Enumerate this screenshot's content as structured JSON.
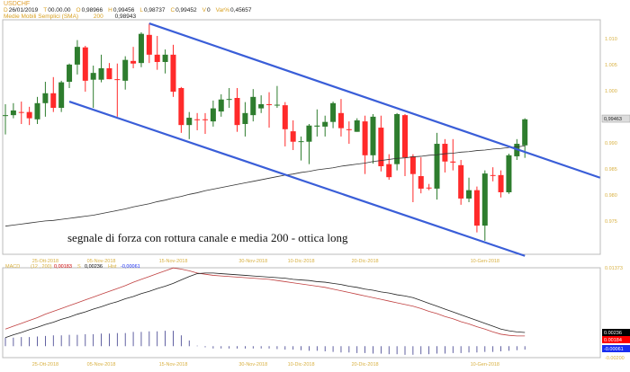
{
  "header": {
    "symbol": "USDCHF",
    "ohlc": [
      {
        "k": "D",
        "v": "26/01/2019"
      },
      {
        "k": "T",
        "v": "00.00.00"
      },
      {
        "k": "O",
        "v": "0,98966"
      },
      {
        "k": "H",
        "v": "0,99456"
      },
      {
        "k": "L",
        "v": "0,98737"
      },
      {
        "k": "C",
        "v": "0,99452"
      },
      {
        "k": "V",
        "v": "0"
      },
      {
        "k": "Var%",
        "v": "0,45657"
      }
    ],
    "sma_label": "Medie Mobili Semplici (SMA)",
    "sma_period": "200",
    "sma_value": "0,98943"
  },
  "annotation": "segnale di forza con rottura canale e media 200 - ottica long",
  "colors": {
    "up": "#2e7d2e",
    "down": "#ff2a2a",
    "channel": "#3a5ed8",
    "sma": "#333333",
    "macd": "#c04040",
    "signal": "#222222",
    "hist": "#3a3a8a",
    "axis_text": "#d8b040"
  },
  "chart_data": [
    {
      "type": "candlestick",
      "ylim": [
        0.9686,
        1.0136
      ],
      "yticks": [
        "1.010",
        "1.005",
        "1.000",
        "0.995",
        "0.990",
        "0.985",
        "0.980",
        "0.975"
      ],
      "ytick_values": [
        1.01,
        1.005,
        1.0,
        0.995,
        0.99,
        0.985,
        0.98,
        0.975
      ],
      "last_price_label": "0,99463",
      "xtick_labels": [
        {
          "i": 5,
          "t": "25-Ott-2018"
        },
        {
          "i": 12,
          "t": "05-Nov-2018"
        },
        {
          "i": 21,
          "t": "15-Nov-2018"
        },
        {
          "i": 31,
          "t": "30-Nov-2018"
        },
        {
          "i": 37,
          "t": "10-Dic-2018"
        },
        {
          "i": 45,
          "t": "20-Dic-2018"
        },
        {
          "i": 60,
          "t": "10-Gen-2018"
        }
      ],
      "candles_ohlc": [
        [
          0.9952,
          0.9974,
          0.9916,
          0.9953
        ],
        [
          0.9953,
          0.9976,
          0.9947,
          0.9962
        ],
        [
          0.9959,
          0.9979,
          0.9936,
          0.9958
        ],
        [
          0.9959,
          0.9969,
          0.9934,
          0.9947
        ],
        [
          0.9945,
          0.9988,
          0.9936,
          0.9976
        ],
        [
          0.9976,
          1.0017,
          0.995,
          0.9995
        ],
        [
          0.9995,
          1.0026,
          0.9959,
          0.9967
        ],
        [
          0.9967,
          1.0019,
          0.9959,
          1.0016
        ],
        [
          1.0017,
          1.0052,
          1.0005,
          1.005
        ],
        [
          1.005,
          1.0097,
          1.0031,
          1.0084
        ],
        [
          1.0083,
          1.0086,
          0.9998,
          1.0019
        ],
        [
          1.0021,
          1.0048,
          0.9967,
          1.0034
        ],
        [
          1.0021,
          1.0069,
          1.0016,
          1.0043
        ],
        [
          1.0043,
          1.0053,
          1.0022,
          1.0022
        ],
        [
          1.0022,
          1.0052,
          0.995,
          1.0021
        ],
        [
          1.0019,
          1.0066,
          1.0002,
          1.0059
        ],
        [
          1.0057,
          1.0084,
          1.0043,
          1.0052
        ],
        [
          1.0053,
          1.0112,
          1.0045,
          1.0109
        ],
        [
          1.0107,
          1.0129,
          1.0053,
          1.0069
        ],
        [
          1.0069,
          1.0105,
          1.004,
          1.0055
        ],
        [
          1.0055,
          1.0079,
          1.0033,
          1.0069
        ],
        [
          1.0069,
          1.0088,
          0.9988,
          0.9998
        ],
        [
          1.0005,
          1.0007,
          0.9919,
          0.9934
        ],
        [
          0.9934,
          0.9959,
          0.9907,
          0.9948
        ],
        [
          0.9945,
          0.9957,
          0.9924,
          0.9944
        ],
        [
          0.9945,
          0.9957,
          0.9917,
          0.9944
        ],
        [
          0.9941,
          0.9981,
          0.9931,
          0.9966
        ],
        [
          0.996,
          0.9993,
          0.995,
          0.9983
        ],
        [
          0.9983,
          1.0005,
          0.9967,
          0.9984
        ],
        [
          0.9986,
          1.0005,
          0.9921,
          0.9934
        ],
        [
          0.9936,
          0.9978,
          0.9912,
          0.9957
        ],
        [
          0.9953,
          1.0003,
          0.9941,
          0.9988
        ],
        [
          0.9966,
          0.9991,
          0.9957,
          0.9974
        ],
        [
          0.9974,
          0.9997,
          0.9929,
          0.9973
        ],
        [
          0.9972,
          1.0009,
          0.9967,
          0.9973
        ],
        [
          0.9972,
          0.9978,
          0.9893,
          0.9926
        ],
        [
          0.9922,
          0.9943,
          0.9886,
          0.9902
        ],
        [
          0.9902,
          0.9912,
          0.9866,
          0.9903
        ],
        [
          0.9902,
          0.9936,
          0.9859,
          0.9933
        ],
        [
          0.9931,
          0.9964,
          0.9912,
          0.9933
        ],
        [
          0.9931,
          0.9952,
          0.9912,
          0.994
        ],
        [
          0.994,
          0.9979,
          0.9928,
          0.9976
        ],
        [
          0.9957,
          0.9984,
          0.9912,
          0.9928
        ],
        [
          0.9926,
          0.9941,
          0.9898,
          0.9925
        ],
        [
          0.9921,
          0.9947,
          0.9921,
          0.9943
        ],
        [
          0.9941,
          0.9952,
          0.984,
          0.9876
        ],
        [
          0.9876,
          0.9955,
          0.986,
          0.995
        ],
        [
          0.9929,
          0.9952,
          0.9845,
          0.9855
        ],
        [
          0.9859,
          0.9878,
          0.9829,
          0.9834
        ],
        [
          0.9859,
          0.9957,
          0.9847,
          0.9955
        ],
        [
          0.9953,
          0.9955,
          0.9836,
          0.9872
        ],
        [
          0.9874,
          0.9878,
          0.9786,
          0.984
        ],
        [
          0.9836,
          0.9872,
          0.9803,
          0.9812
        ],
        [
          0.9814,
          0.9821,
          0.9809,
          0.9813
        ],
        [
          0.9812,
          0.9919,
          0.9791,
          0.9898
        ],
        [
          0.9898,
          0.9907,
          0.9843,
          0.9864
        ],
        [
          0.9864,
          0.9907,
          0.9847,
          0.9862
        ],
        [
          0.9857,
          0.9867,
          0.9781,
          0.9793
        ],
        [
          0.9793,
          0.9833,
          0.9786,
          0.9809
        ],
        [
          0.9809,
          0.9816,
          0.9728,
          0.9741
        ],
        [
          0.9741,
          0.9847,
          0.9712,
          0.9841
        ],
        [
          0.9838,
          0.9853,
          0.9826,
          0.9837
        ],
        [
          0.9838,
          0.9847,
          0.9795,
          0.9805
        ],
        [
          0.9805,
          0.9879,
          0.9802,
          0.9876
        ],
        [
          0.9874,
          0.9907,
          0.9867,
          0.9898
        ],
        [
          0.9895,
          0.9947,
          0.9871,
          0.9945
        ]
      ],
      "sma200": [
        0.974,
        0.9742,
        0.9744,
        0.9746,
        0.9748,
        0.975,
        0.9751,
        0.9753,
        0.9755,
        0.9757,
        0.9759,
        0.9761,
        0.9764,
        0.9767,
        0.977,
        0.9773,
        0.9777,
        0.978,
        0.9783,
        0.9787,
        0.979,
        0.9794,
        0.9797,
        0.9801,
        0.9804,
        0.9808,
        0.9811,
        0.9814,
        0.9817,
        0.982,
        0.9823,
        0.9826,
        0.9829,
        0.9832,
        0.9835,
        0.9838,
        0.984,
        0.9843,
        0.9845,
        0.9848,
        0.985,
        0.9852,
        0.9855,
        0.9857,
        0.9859,
        0.9861,
        0.9864,
        0.9866,
        0.9868,
        0.987,
        0.9871,
        0.9873,
        0.9874,
        0.9876,
        0.9877,
        0.9879,
        0.988,
        0.9882,
        0.9883,
        0.9885,
        0.9886,
        0.9888,
        0.9889,
        0.9891,
        0.9892,
        0.9894
      ],
      "channel_upper": {
        "from": [
          18,
          1.0129
        ],
        "to": [
          74.4,
          0.9833
        ]
      },
      "channel_lower": {
        "from": [
          8,
          0.9979
        ],
        "to": [
          65,
          0.9683
        ]
      }
    },
    {
      "type": "line+bar",
      "label": "MACD",
      "params": "(12 , 200)",
      "macd_value": "0,00183",
      "signal_key": "S",
      "signal_value": "0,00236",
      "hist_key": "Hist",
      "hist_value": "-0,00061",
      "ylim": [
        -0.002,
        0.01373
      ],
      "ytick_labels": [
        "0.01373",
        "-0.00200"
      ],
      "badges": [
        {
          "t": "0.00236",
          "c": "#000000",
          "v": 0.00236
        },
        {
          "t": "0.00184",
          "c": "#ff0000",
          "v": 0.00184
        },
        {
          "t": "-0.00061",
          "c": "#1a2ef0",
          "v": -0.00061
        }
      ],
      "macd": [
        0.003,
        0.0035,
        0.004,
        0.0045,
        0.005,
        0.0056,
        0.0061,
        0.0066,
        0.0071,
        0.0076,
        0.0081,
        0.0086,
        0.0091,
        0.0096,
        0.0101,
        0.0106,
        0.0112,
        0.0117,
        0.0122,
        0.0127,
        0.0132,
        0.0137,
        0.0135,
        0.0132,
        0.0128,
        0.0126,
        0.0124,
        0.0123,
        0.0122,
        0.0121,
        0.012,
        0.0119,
        0.0118,
        0.0117,
        0.0115,
        0.0113,
        0.0111,
        0.0109,
        0.0107,
        0.0105,
        0.0103,
        0.01,
        0.0097,
        0.0094,
        0.0091,
        0.0088,
        0.0085,
        0.0082,
        0.0079,
        0.0076,
        0.0073,
        0.007,
        0.0066,
        0.0061,
        0.0057,
        0.0052,
        0.0048,
        0.0043,
        0.0039,
        0.0034,
        0.003,
        0.0025,
        0.0021,
        0.0019,
        0.0018,
        0.0018
      ],
      "signal": [
        0.0015,
        0.002,
        0.0024,
        0.0029,
        0.0033,
        0.0038,
        0.0042,
        0.0047,
        0.0051,
        0.0056,
        0.006,
        0.0065,
        0.0069,
        0.0074,
        0.0078,
        0.0083,
        0.0087,
        0.0092,
        0.0096,
        0.0101,
        0.0105,
        0.011,
        0.0116,
        0.0122,
        0.0127,
        0.0128,
        0.0128,
        0.0127,
        0.0126,
        0.0125,
        0.0124,
        0.0123,
        0.0122,
        0.0121,
        0.012,
        0.0119,
        0.0117,
        0.0116,
        0.0115,
        0.0113,
        0.0112,
        0.011,
        0.0108,
        0.0105,
        0.0103,
        0.01,
        0.0098,
        0.0095,
        0.0093,
        0.009,
        0.0088,
        0.0085,
        0.008,
        0.0075,
        0.007,
        0.0065,
        0.006,
        0.0055,
        0.005,
        0.0045,
        0.004,
        0.0035,
        0.003,
        0.0027,
        0.0025,
        0.0024
      ]
    }
  ]
}
